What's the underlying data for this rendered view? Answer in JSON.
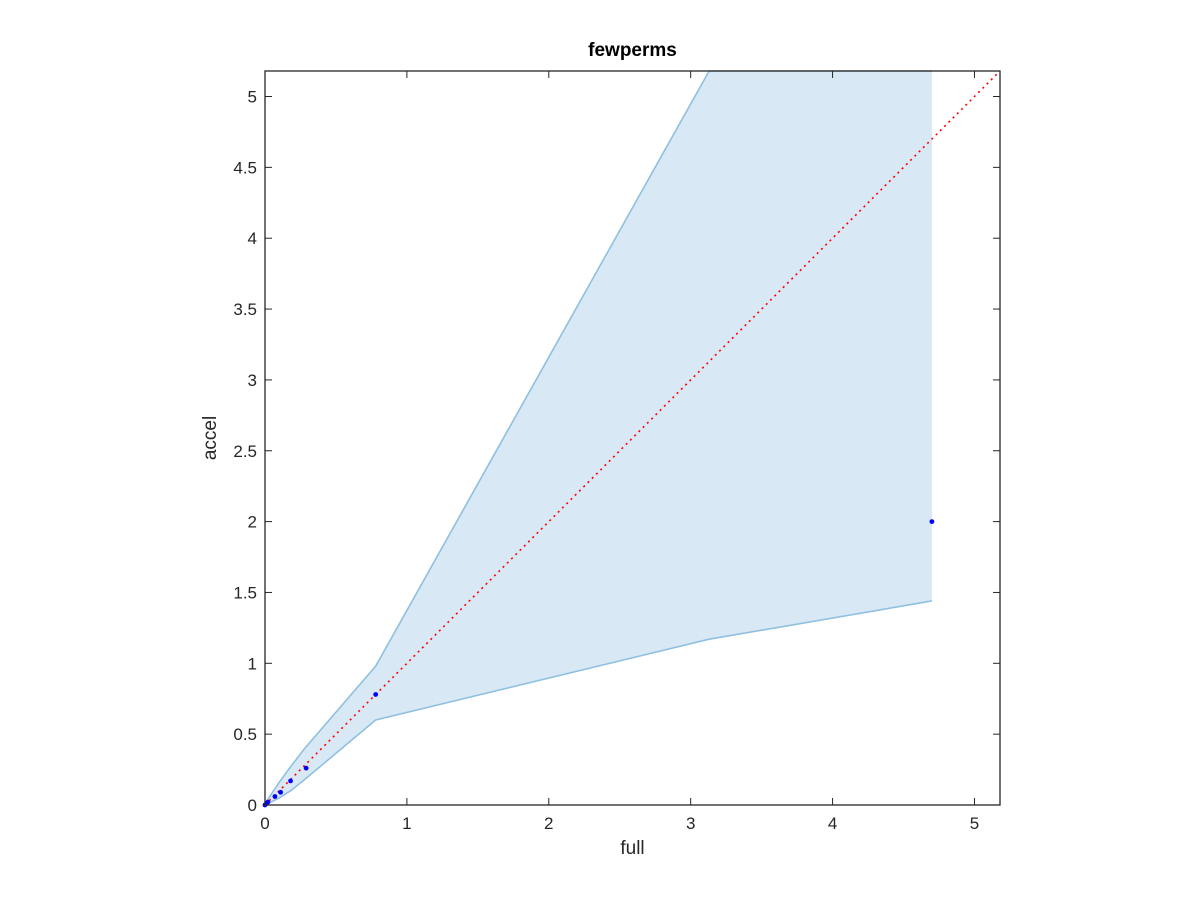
{
  "chart_data": {
    "type": "area",
    "title": "fewperms",
    "xlabel": "full",
    "ylabel": "accel",
    "xlim": [
      0,
      5.18
    ],
    "ylim": [
      0,
      5.18
    ],
    "x_ticks": [
      0,
      1,
      2,
      3,
      4,
      5
    ],
    "y_ticks": [
      0,
      0.5,
      1,
      1.5,
      2,
      2.5,
      3,
      3.5,
      4,
      4.5,
      5
    ],
    "x_tick_labels": [
      "0",
      "1",
      "2",
      "3",
      "4",
      "5"
    ],
    "y_tick_labels": [
      "0",
      "0.5",
      "1",
      "1.5",
      "2",
      "2.5",
      "3",
      "3.5",
      "4",
      "4.5",
      "5"
    ],
    "grid": false,
    "band": {
      "x": [
        0,
        0.02,
        0.04,
        0.06,
        0.1,
        0.18,
        0.28,
        0.78,
        3.13,
        4.7
      ],
      "upper": [
        0.01,
        0.04,
        0.07,
        0.1,
        0.16,
        0.27,
        0.4,
        0.98,
        5.18,
        5.18
      ],
      "lower": [
        0,
        0.01,
        0.02,
        0.03,
        0.05,
        0.1,
        0.18,
        0.6,
        1.17,
        1.44
      ],
      "fill_color": "#d9e8f5",
      "edge_color": "#8fc0e0"
    },
    "points": {
      "x": [
        0,
        0.01,
        0.02,
        0.07,
        0.11,
        0.18,
        0.29,
        0.78,
        4.7
      ],
      "y": [
        0,
        0.01,
        0.02,
        0.06,
        0.09,
        0.17,
        0.26,
        0.78,
        2.0
      ],
      "color": "#0000ff"
    },
    "reference_line": {
      "type": "y=x",
      "style": "dotted",
      "color": "#ff0000"
    }
  }
}
